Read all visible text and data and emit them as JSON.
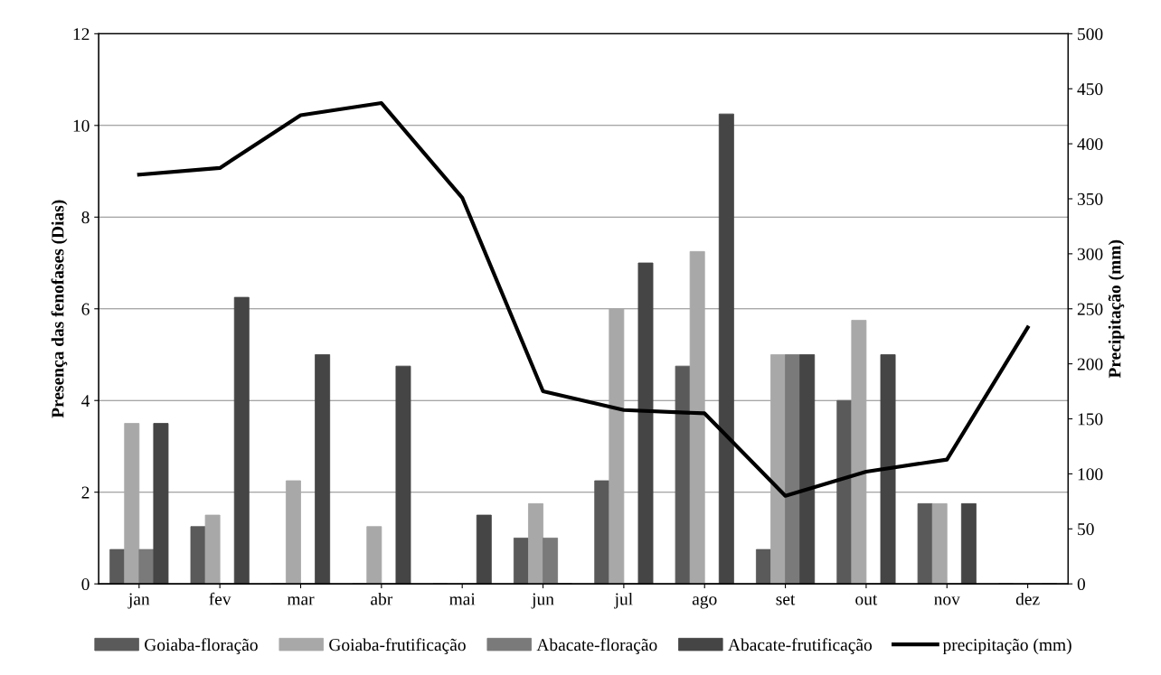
{
  "chart_data": {
    "type": "bar",
    "categories": [
      "jan",
      "fev",
      "mar",
      "abr",
      "mai",
      "jun",
      "jul",
      "ago",
      "set",
      "out",
      "nov",
      "dez"
    ],
    "ylabel": "Presença das fenofases (Dias)",
    "y2label": "Precipitação (mm)",
    "ylim": [
      0,
      12
    ],
    "yticks": [
      0,
      2,
      4,
      6,
      8,
      10,
      12
    ],
    "y2lim": [
      0,
      500
    ],
    "y2ticks": [
      0,
      50,
      100,
      150,
      200,
      250,
      300,
      350,
      400,
      450,
      500
    ],
    "grid": "y",
    "legend": "bottom",
    "series": [
      {
        "name": "Goiaba-floração",
        "color": "#5a5a5a",
        "values": [
          0.75,
          1.25,
          0,
          0,
          0,
          1,
          2.25,
          4.75,
          0.75,
          4,
          1.75,
          0
        ]
      },
      {
        "name": "Goiaba-frutificação",
        "color": "#a8a8a8",
        "values": [
          3.5,
          1.5,
          2.25,
          1.25,
          0,
          1.75,
          6,
          7.25,
          5,
          5.75,
          1.75,
          0
        ]
      },
      {
        "name": "Abacate-floração",
        "color": "#7a7a7a",
        "values": [
          0.75,
          0,
          0,
          0,
          0,
          1,
          0,
          0,
          5,
          0,
          0,
          0
        ]
      },
      {
        "name": "Abacate-frutificação",
        "color": "#454545",
        "values": [
          3.5,
          6.25,
          5,
          4.75,
          1.5,
          0,
          7,
          10.25,
          5,
          5,
          1.75,
          0
        ]
      },
      {
        "name": "precipitação (mm)",
        "type": "line",
        "axis": "y2",
        "color": "#000000",
        "marker": "none",
        "line_style": "solid",
        "values": [
          372,
          378,
          426,
          437,
          351,
          175,
          158,
          155,
          80,
          102,
          113,
          233
        ]
      }
    ]
  }
}
